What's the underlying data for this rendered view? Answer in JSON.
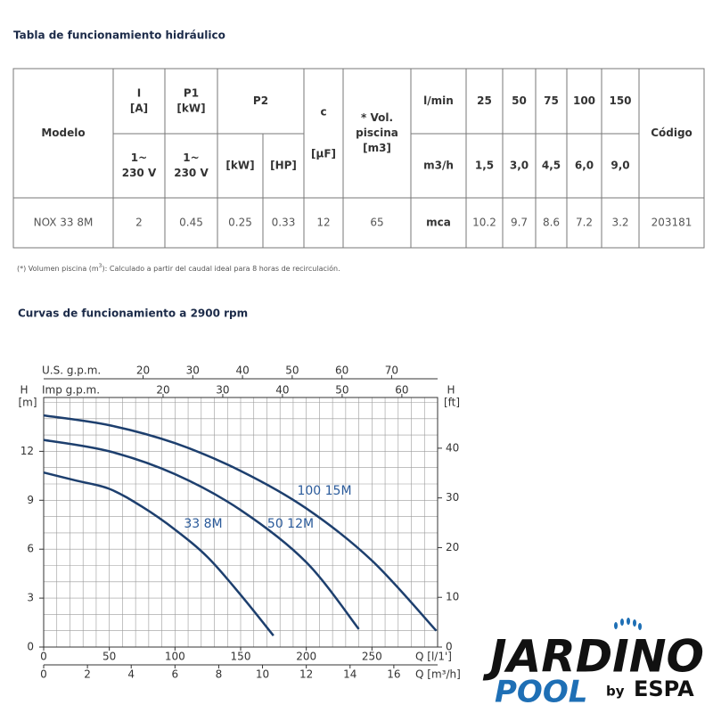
{
  "header": {
    "title": "Tabla de funcionamiento hidráulico"
  },
  "table": {
    "head_top": [
      [
        "Modelo"
      ],
      [
        "I",
        "[A]"
      ],
      [
        "P1",
        "[kW]"
      ],
      [
        "P2"
      ],
      [
        "c",
        "[µF]"
      ],
      [
        "* Vol.",
        "piscina",
        "[m3]"
      ],
      [
        "l/min"
      ],
      [
        "25"
      ],
      [
        "50"
      ],
      [
        "75"
      ],
      [
        "100"
      ],
      [
        "150"
      ],
      [
        "Código"
      ]
    ],
    "head_bottom": [
      [
        "1~",
        "230 V"
      ],
      [
        "1~",
        "230 V"
      ],
      [
        "[kW]"
      ],
      [
        "[HP]"
      ],
      [
        "m3/h"
      ],
      [
        "1,5"
      ],
      [
        "3,0"
      ],
      [
        "4,5"
      ],
      [
        "6,0"
      ],
      [
        "9,0"
      ]
    ],
    "rows": [
      [
        "NOX 33 8M",
        "2",
        "0.45",
        "0.25",
        "0.33",
        "12",
        "65",
        "mca",
        "10.2",
        "9.7",
        "8.6",
        "7.2",
        "3.2",
        "203181"
      ]
    ]
  },
  "footnote": [
    "(*) Volumen piscina (m",
    "3",
    "): Calculado a partir del caudal ideal para 8 horas de recirculación."
  ],
  "curves_title": "Curvas de funcionamiento a 2900 rpm",
  "chart_data": {
    "type": "line",
    "ylabel": "H",
    "yunit": "[m]",
    "ylim": [
      0,
      15.3
    ],
    "yticks": [
      0,
      3,
      6,
      9,
      12
    ],
    "y2label": "H",
    "y2unit": "[ft]",
    "y2lim": [
      0,
      50.2
    ],
    "y2ticks": [
      0,
      10,
      20,
      30,
      40
    ],
    "xlabel": "Q [l/1']",
    "xlim": [
      0,
      300
    ],
    "xticks": [
      0,
      50,
      100,
      150,
      200,
      250
    ],
    "x_axes": [
      {
        "label": "Q [m³/h]",
        "lim": [
          0,
          18
        ],
        "ticks": [
          0,
          2,
          4,
          6,
          8,
          10,
          12,
          14,
          16
        ]
      },
      {
        "label": "U.S. g.p.m.",
        "lim": [
          0,
          79.25
        ],
        "ticks": [
          20,
          30,
          40,
          50,
          60,
          70
        ]
      },
      {
        "label": "Imp g.p.m.",
        "lim": [
          0,
          65.99
        ],
        "ticks": [
          20,
          30,
          40,
          50,
          60
        ]
      }
    ],
    "grid": true,
    "series": [
      {
        "name": "33 8M",
        "color": "#1d3f6e",
        "x": [
          0,
          25,
          50,
          75,
          100,
          125,
          150,
          175
        ],
        "values": [
          10.7,
          10.2,
          9.7,
          8.6,
          7.2,
          5.5,
          3.2,
          0.7
        ]
      },
      {
        "name": "50 12M",
        "color": "#1d3f6e",
        "x": [
          0,
          50,
          100,
          150,
          200,
          240
        ],
        "values": [
          12.7,
          12.0,
          10.6,
          8.4,
          5.2,
          1.1
        ]
      },
      {
        "name": "100 15M",
        "color": "#1d3f6e",
        "x": [
          0,
          50,
          100,
          150,
          200,
          250,
          299
        ],
        "values": [
          14.2,
          13.6,
          12.5,
          10.8,
          8.5,
          5.3,
          1.0
        ]
      }
    ]
  },
  "logo": {
    "brand": "JARDINO",
    "line": "POOL",
    "by": "by",
    "maker": "ESPA"
  }
}
